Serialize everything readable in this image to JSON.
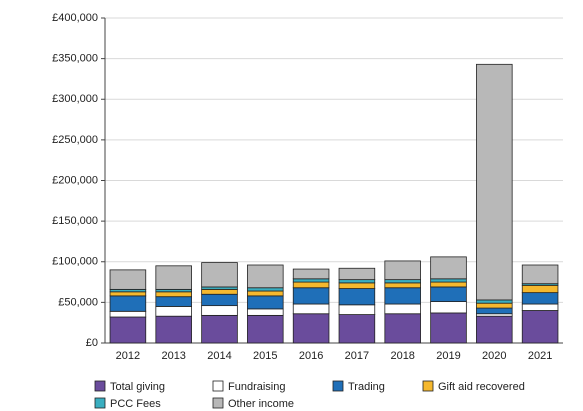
{
  "chart_data": {
    "type": "stacked_bar",
    "categories": [
      "2012",
      "2013",
      "2014",
      "2015",
      "2016",
      "2017",
      "2018",
      "2019",
      "2020",
      "2021"
    ],
    "series": [
      {
        "name": "Total giving",
        "color": "#6a4c9c",
        "values": [
          32000,
          33000,
          34000,
          34000,
          36000,
          35000,
          36000,
          37000,
          33000,
          40000
        ]
      },
      {
        "name": "Fundraising",
        "color": "#ffffff",
        "values": [
          7000,
          12000,
          12000,
          8000,
          12000,
          12000,
          12000,
          14000,
          3000,
          8000
        ]
      },
      {
        "name": "Trading",
        "color": "#1f6fb8",
        "values": [
          19000,
          12000,
          14000,
          16000,
          20000,
          20000,
          20000,
          18000,
          7000,
          14000
        ]
      },
      {
        "name": "Gift aid recovered",
        "color": "#f5b82e",
        "values": [
          5000,
          6000,
          6000,
          6000,
          7000,
          7000,
          6000,
          6000,
          6000,
          9000
        ]
      },
      {
        "name": "PCC Fees",
        "color": "#3aaec0",
        "values": [
          3000,
          3000,
          3000,
          4000,
          4000,
          4000,
          4000,
          4000,
          4000,
          2000
        ]
      },
      {
        "name": "Other income",
        "color": "#b8b8b8",
        "values": [
          24000,
          29000,
          30000,
          28000,
          12000,
          14000,
          23000,
          27000,
          290000,
          23000
        ]
      }
    ],
    "ylim": [
      0,
      400000
    ],
    "yticks": [
      {
        "value": 0,
        "label": "£0"
      },
      {
        "value": 50000,
        "label": "£50,000"
      },
      {
        "value": 100000,
        "label": "£100,000"
      },
      {
        "value": 150000,
        "label": "£150,000"
      },
      {
        "value": 200000,
        "label": "£200,000"
      },
      {
        "value": 250000,
        "label": "£250,000"
      },
      {
        "value": 300000,
        "label": "£300,000"
      },
      {
        "value": 350000,
        "label": "£350,000"
      },
      {
        "value": 400000,
        "label": "£400,000"
      }
    ],
    "grid": true,
    "legend": "bottom"
  }
}
